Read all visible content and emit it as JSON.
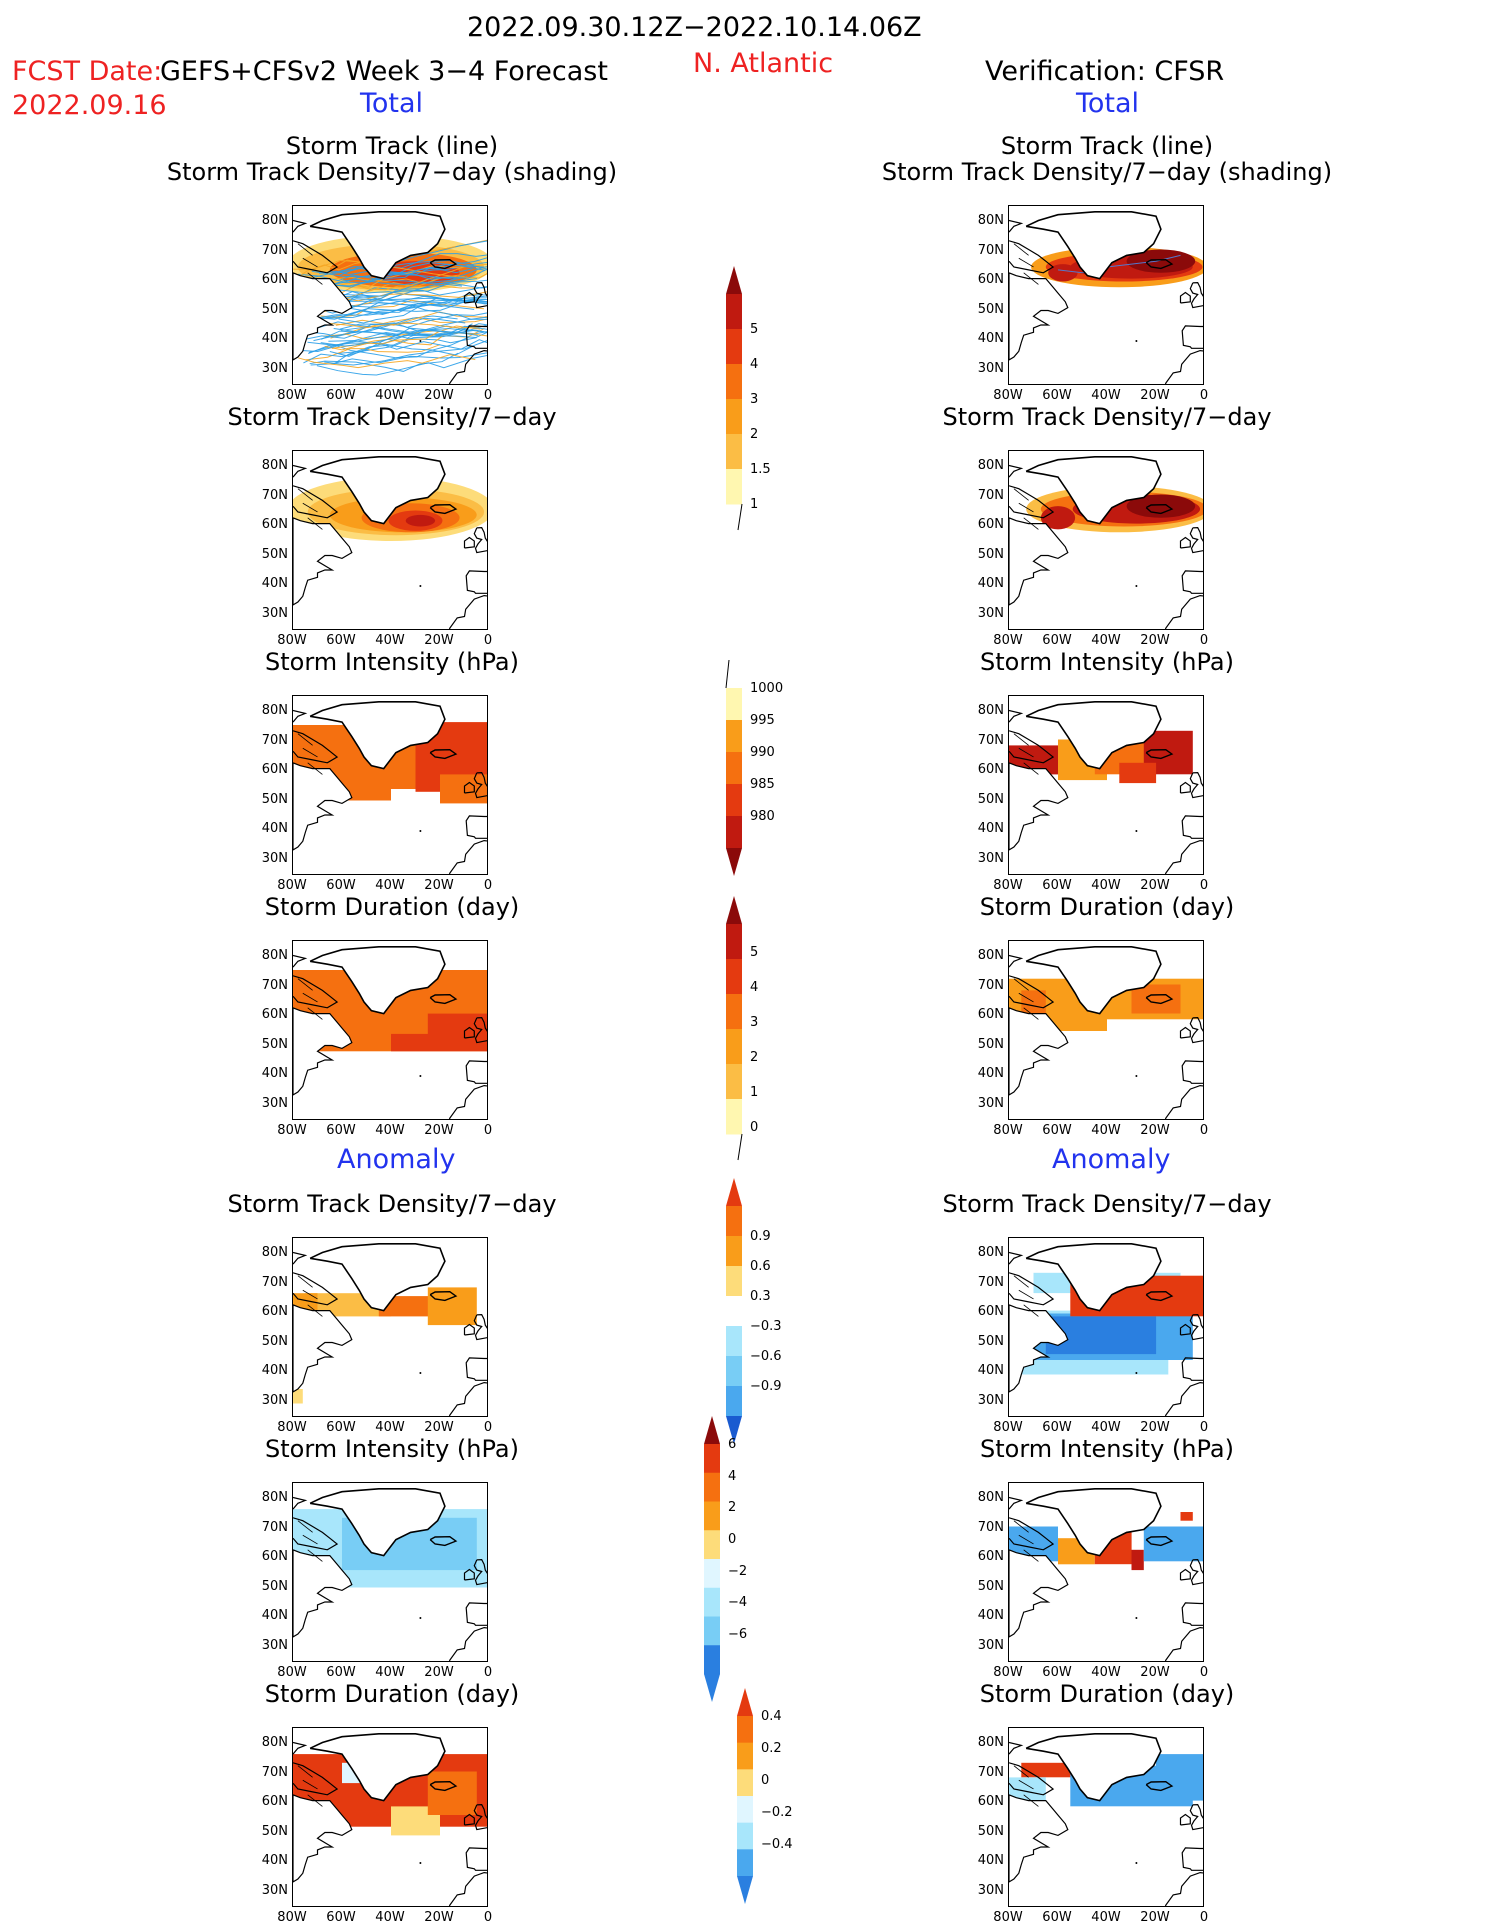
{
  "header": {
    "time_range": "2022.09.30.12Z−2022.10.14.06Z",
    "fcst_date_label": "FCST Date:",
    "fcst_date": "2022.09.16",
    "model": "GEFS+CFSv2 Week 3−4 Forecast",
    "region": "N. Atlantic",
    "verification": "Verification: CFSR",
    "total_left": "Total",
    "total_right": "Total",
    "anomaly_left": "Anomaly",
    "anomaly_right": "Anomaly"
  },
  "titles": {
    "track_line": "Storm Track (line)",
    "track_shading": "Storm Track Density/7−day (shading)",
    "density": "Storm Track Density/7−day",
    "intensity": "Storm Intensity (hPa)",
    "duration": "Storm Duration (day)"
  },
  "axes": {
    "lat_ticks": [
      "80N",
      "70N",
      "60N",
      "50N",
      "40N",
      "30N"
    ],
    "lon_ticks": [
      "80W",
      "60W",
      "40W",
      "20W",
      "0"
    ]
  },
  "colorbars": {
    "density_total": [
      "5",
      "4",
      "3",
      "2",
      "1.5",
      "1"
    ],
    "intensity_total": [
      "1000",
      "995",
      "990",
      "985",
      "980"
    ],
    "duration_total": [
      "5",
      "4",
      "3",
      "2",
      "1",
      "0"
    ],
    "density_anom": [
      "0.9",
      "0.6",
      "0.3",
      "−0.3",
      "−0.6",
      "−0.9"
    ],
    "intensity_anom": [
      "6",
      "4",
      "2",
      "0",
      "−2",
      "−4",
      "−6"
    ],
    "duration_anom": [
      "0.4",
      "0.2",
      "0",
      "−0.2",
      "−0.4"
    ]
  },
  "colors": {
    "warm": [
      "#fff7b0",
      "#fddc7a",
      "#fbbd45",
      "#f99d1a",
      "#f57010",
      "#e43a10",
      "#c01a10",
      "#8b0a0a"
    ],
    "cool": [
      "#e0f6ff",
      "#a8e6fb",
      "#78cdf5",
      "#4aa8ee",
      "#2a7fe0",
      "#1a5bd0"
    ],
    "track_lines": "#2a9ee8",
    "track_lines_fcst_warm": "#f5a623",
    "track_lines_obs": "#5577cc"
  }
}
